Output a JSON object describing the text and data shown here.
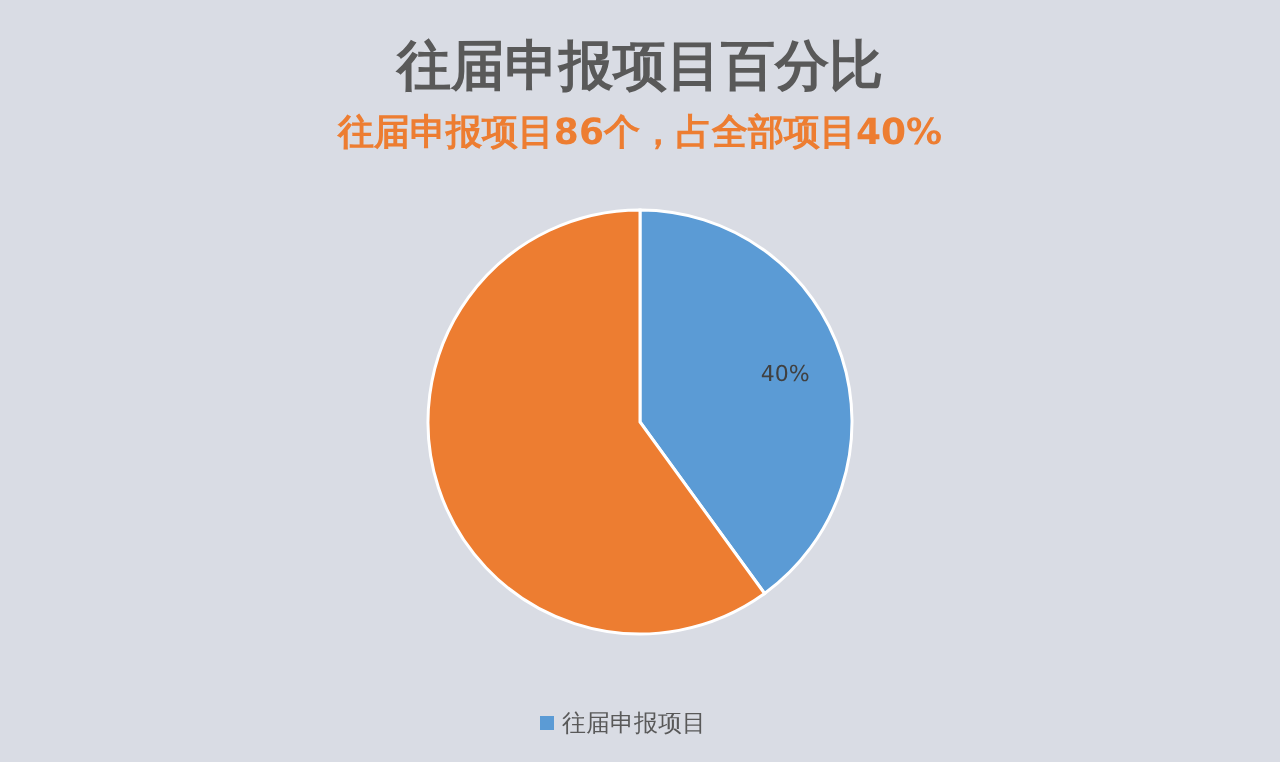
{
  "chart_data": {
    "type": "pie",
    "title": "往届申报项目百分比",
    "subtitle": "往届申报项目86个，占全部项目40%",
    "categories": [
      "往届申报项目",
      null
    ],
    "values": [
      40,
      60
    ],
    "colors": [
      "#5b9bd5",
      "#ed7d31"
    ],
    "value_labels": [
      "40%",
      null
    ],
    "legend": "bottom"
  }
}
